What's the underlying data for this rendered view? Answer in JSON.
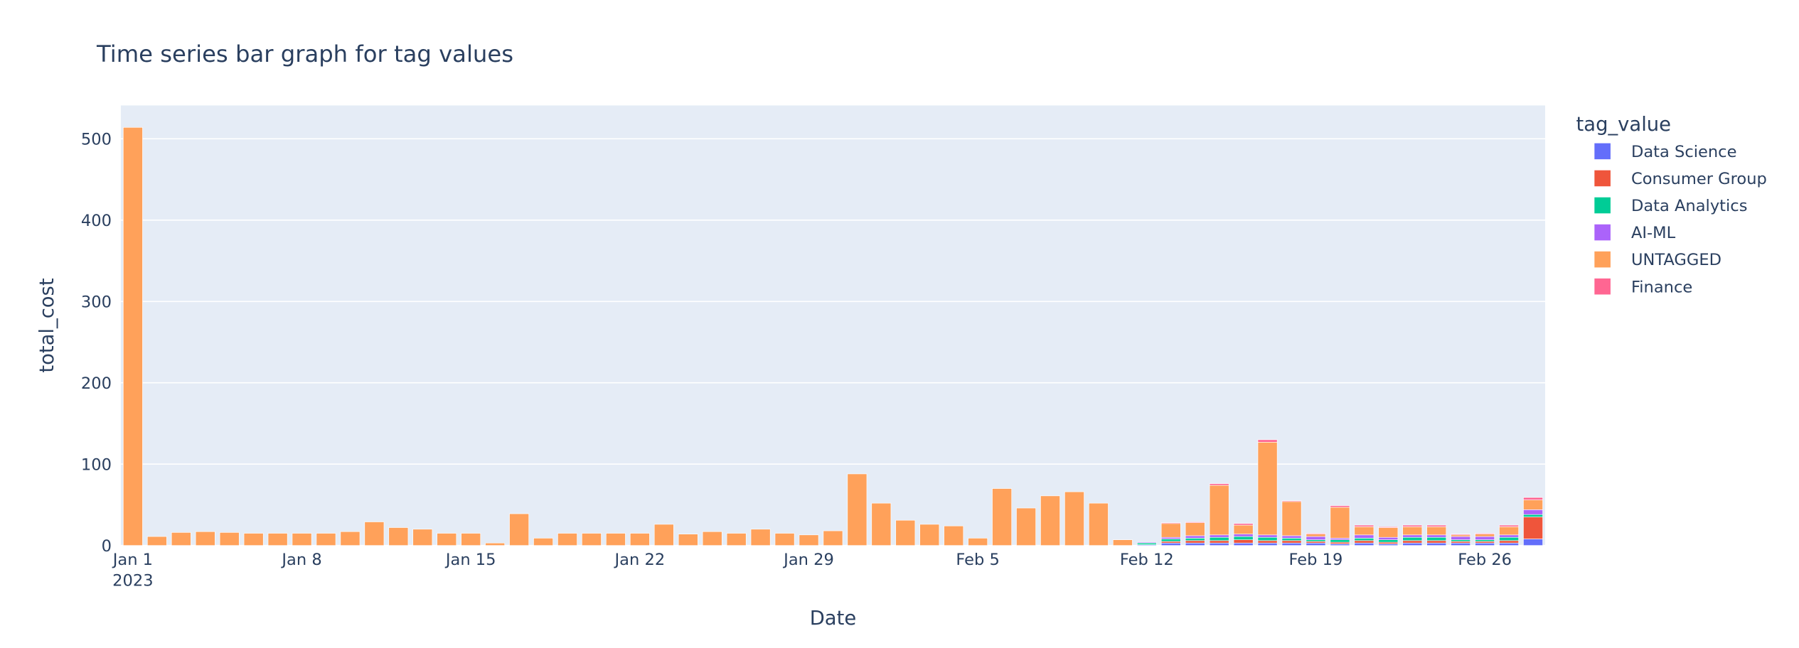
{
  "chart_data": {
    "type": "bar",
    "barmode": "stack",
    "title": "Time series bar graph for tag values",
    "x_label": "Date",
    "y_label": "total_cost",
    "legend_title": "tag_value",
    "x": [
      "2023-01-01",
      "2023-01-02",
      "2023-01-03",
      "2023-01-04",
      "2023-01-05",
      "2023-01-06",
      "2023-01-07",
      "2023-01-08",
      "2023-01-09",
      "2023-01-10",
      "2023-01-11",
      "2023-01-12",
      "2023-01-13",
      "2023-01-14",
      "2023-01-15",
      "2023-01-16",
      "2023-01-17",
      "2023-01-18",
      "2023-01-19",
      "2023-01-20",
      "2023-01-21",
      "2023-01-22",
      "2023-01-23",
      "2023-01-24",
      "2023-01-25",
      "2023-01-26",
      "2023-01-27",
      "2023-01-28",
      "2023-01-29",
      "2023-01-30",
      "2023-01-31",
      "2023-02-01",
      "2023-02-02",
      "2023-02-03",
      "2023-02-04",
      "2023-02-05",
      "2023-02-06",
      "2023-02-07",
      "2023-02-08",
      "2023-02-09",
      "2023-02-10",
      "2023-02-11",
      "2023-02-12",
      "2023-02-13",
      "2023-02-14",
      "2023-02-15",
      "2023-02-16",
      "2023-02-17",
      "2023-02-18",
      "2023-02-19",
      "2023-02-20",
      "2023-02-21",
      "2023-02-22",
      "2023-02-23",
      "2023-02-24",
      "2023-02-25",
      "2023-02-26",
      "2023-02-27",
      "2023-02-28"
    ],
    "series": [
      {
        "name": "Data Science",
        "color": "#636efa",
        "values": [
          0,
          0,
          0,
          0,
          0,
          0,
          0,
          0,
          0,
          0,
          0,
          0,
          0,
          0,
          0,
          0,
          0,
          0,
          0,
          0,
          0,
          0,
          0,
          0,
          0,
          0,
          0,
          0,
          0,
          0,
          0,
          0,
          0,
          0,
          0,
          0,
          0,
          0,
          0,
          0,
          0,
          0,
          1,
          3,
          3,
          3,
          3,
          3,
          3,
          3,
          2,
          3,
          2,
          3,
          3,
          3,
          3,
          3,
          8
        ]
      },
      {
        "name": "Consumer Group",
        "color": "#EF553B",
        "values": [
          0,
          0,
          0,
          0,
          0,
          0,
          0,
          0,
          0,
          0,
          0,
          0,
          0,
          0,
          0,
          0,
          0,
          0,
          0,
          0,
          0,
          0,
          0,
          0,
          0,
          0,
          0,
          0,
          0,
          0,
          0,
          0,
          0,
          0,
          0,
          0,
          0,
          0,
          0,
          0,
          0,
          0,
          0,
          2,
          3,
          3,
          4,
          3,
          3,
          2,
          2,
          3,
          2,
          3,
          3,
          2,
          2,
          3,
          27
        ]
      },
      {
        "name": "Data Analytics",
        "color": "#00cc96",
        "values": [
          0,
          0,
          0,
          0,
          0,
          0,
          0,
          0,
          0,
          0,
          0,
          0,
          0,
          0,
          0,
          0,
          0,
          0,
          0,
          0,
          0,
          0,
          0,
          0,
          0,
          0,
          0,
          0,
          0,
          0,
          0,
          0,
          0,
          0,
          0,
          0,
          0,
          0,
          0,
          0,
          0,
          0,
          2,
          3,
          3,
          4,
          4,
          4,
          3,
          2,
          3,
          3,
          3,
          4,
          4,
          2,
          2,
          4,
          3
        ]
      },
      {
        "name": "AI-ML",
        "color": "#ab63fa",
        "values": [
          0,
          0,
          0,
          0,
          0,
          0,
          0,
          0,
          0,
          0,
          0,
          0,
          0,
          0,
          0,
          0,
          0,
          0,
          0,
          0,
          0,
          0,
          0,
          0,
          0,
          0,
          0,
          0,
          0,
          0,
          0,
          0,
          0,
          0,
          0,
          0,
          0,
          0,
          0,
          0,
          0,
          0,
          1,
          2,
          3,
          3,
          3,
          3,
          3,
          4,
          2,
          4,
          3,
          3,
          3,
          4,
          4,
          3,
          6
        ]
      },
      {
        "name": "UNTAGGED",
        "color": "#FFA15A",
        "values": [
          514,
          11,
          16,
          17,
          16,
          15,
          15,
          15,
          15,
          17,
          29,
          22,
          20,
          15,
          15,
          3,
          39,
          9,
          15,
          15,
          15,
          15,
          26,
          14,
          17,
          15,
          20,
          15,
          13,
          18,
          88,
          52,
          31,
          26,
          24,
          9,
          70,
          46,
          61,
          66,
          52,
          7,
          0,
          17,
          16,
          61,
          11,
          114,
          42,
          3,
          38,
          10,
          12,
          10,
          10,
          2,
          3,
          10,
          12
        ]
      },
      {
        "name": "Finance",
        "color": "#FF6692",
        "values": [
          0,
          0,
          0,
          0,
          0,
          0,
          0,
          0,
          0,
          0,
          0,
          0,
          0,
          0,
          0,
          0,
          0,
          0,
          0,
          0,
          0,
          0,
          0,
          0,
          0,
          0,
          0,
          0,
          0,
          0,
          0,
          0,
          0,
          0,
          0,
          0,
          0,
          0,
          0,
          0,
          0,
          0,
          0,
          1,
          1,
          2,
          2,
          3,
          1,
          1,
          2,
          2,
          1,
          2,
          2,
          1,
          1,
          2,
          3
        ]
      }
    ],
    "xlim": [
      "2022-12-31T12:00",
      "2023-02-28T12:00"
    ],
    "xticks": [
      {
        "value": "2023-01-01",
        "label": "Jan 1\n2023"
      },
      {
        "value": "2023-01-08",
        "label": "Jan 8"
      },
      {
        "value": "2023-01-15",
        "label": "Jan 15"
      },
      {
        "value": "2023-01-22",
        "label": "Jan 22"
      },
      {
        "value": "2023-01-29",
        "label": "Jan 29"
      },
      {
        "value": "2023-02-05",
        "label": "Feb 5"
      },
      {
        "value": "2023-02-12",
        "label": "Feb 12"
      },
      {
        "value": "2023-02-19",
        "label": "Feb 19"
      },
      {
        "value": "2023-02-26",
        "label": "Feb 26"
      }
    ],
    "ylim": [
      0,
      541
    ],
    "yticks": [
      0,
      100,
      200,
      300,
      400,
      500
    ],
    "grid": true
  }
}
